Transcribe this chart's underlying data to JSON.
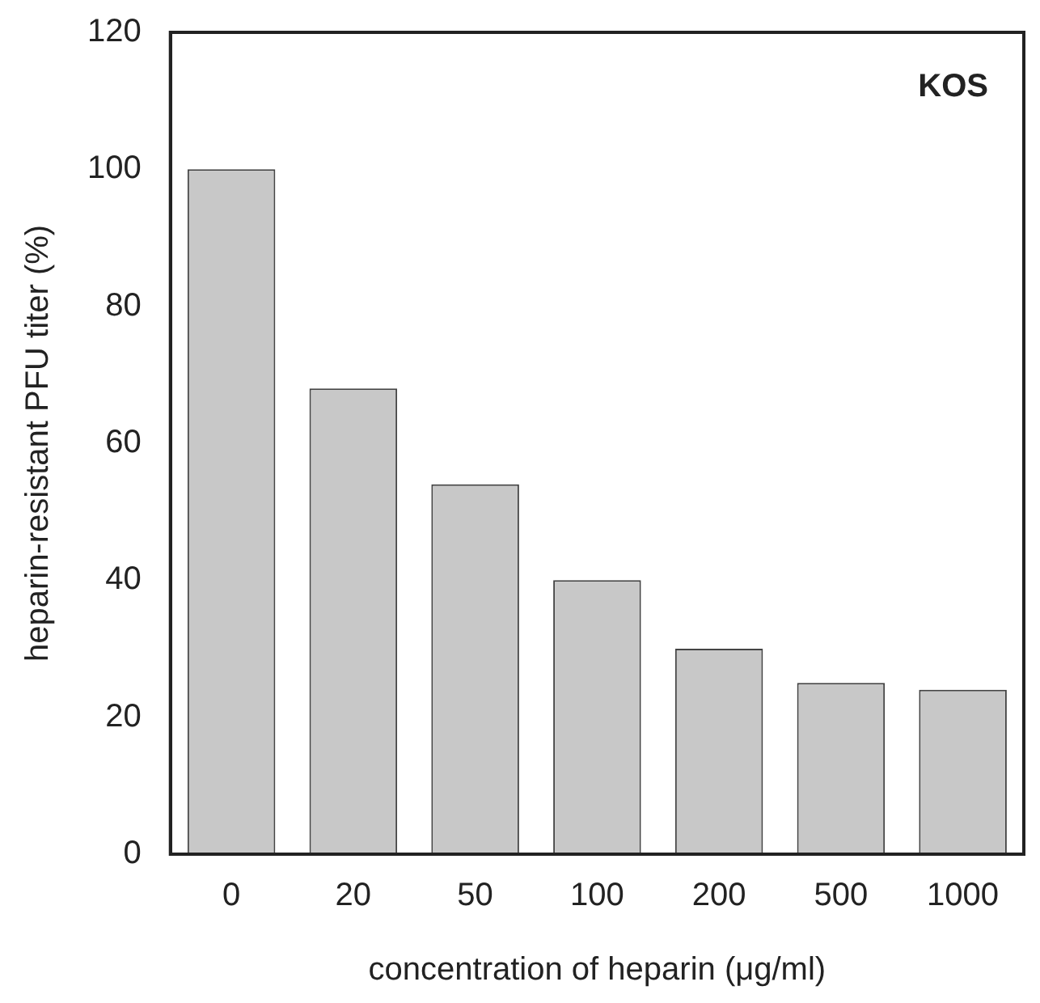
{
  "chart_data": {
    "type": "bar",
    "categories": [
      "0",
      "20",
      "50",
      "100",
      "200",
      "500",
      "1000"
    ],
    "values": [
      100,
      68,
      54,
      40,
      30,
      25,
      24
    ],
    "color": "#c8c8c8",
    "xlabel": "concentration of heparin (μg/ml)",
    "ylabel": "heparin-resistant PFU titer (%)",
    "ylim": [
      0,
      120
    ],
    "yticks": [
      0,
      20,
      40,
      60,
      80,
      100,
      120
    ],
    "grid": false,
    "legend": false,
    "annotations": [
      "KOS"
    ]
  }
}
